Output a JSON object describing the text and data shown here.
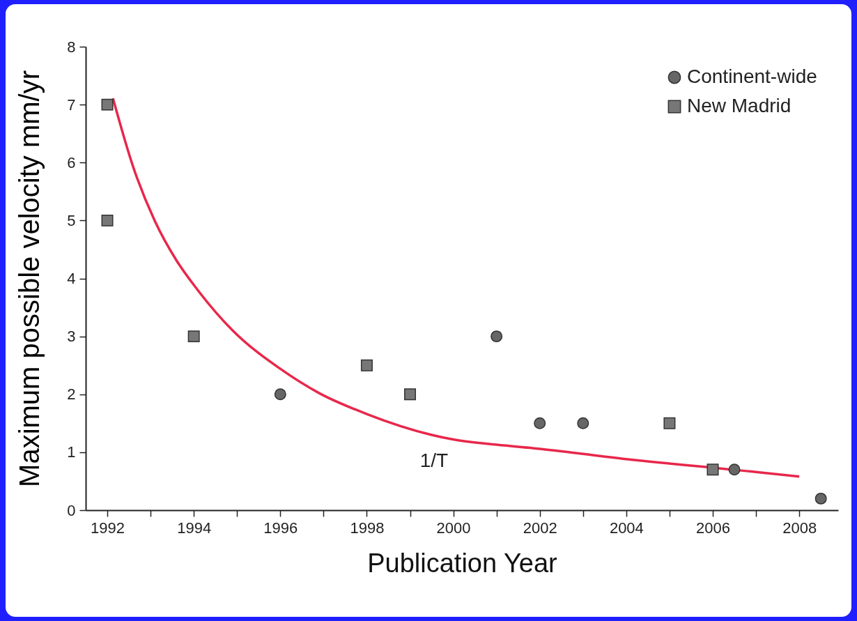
{
  "chart_data": {
    "type": "scatter",
    "xlabel": "Publication Year",
    "ylabel": "Maximum possible velocity mm/yr",
    "xlim": [
      1991.5,
      2008.9
    ],
    "ylim": [
      0,
      8
    ],
    "xticks": [
      1992,
      {
        "value": 1993,
        "label": null
      },
      1994,
      {
        "value": 1995,
        "label": null
      },
      1996,
      {
        "value": 1997,
        "label": null
      },
      1998,
      {
        "value": 1999,
        "label": null
      },
      2000,
      {
        "value": 2001,
        "label": null
      },
      2002,
      {
        "value": 2003,
        "label": null
      },
      2004,
      {
        "value": 2005,
        "label": null
      },
      2006,
      {
        "value": 2007,
        "label": null
      },
      2008
    ],
    "yticks": [
      0,
      1,
      2,
      3,
      4,
      5,
      6,
      7,
      8
    ],
    "grid": false,
    "legend": "top right",
    "annotations": [
      "1/T"
    ],
    "series": [
      {
        "name": "Continent-wide",
        "marker": "circle",
        "color": "#666666",
        "x": [
          1996,
          2001,
          2002,
          2003,
          2006.5,
          2008.5
        ],
        "values": [
          2,
          3,
          1.5,
          1.5,
          0.7,
          0.2
        ]
      },
      {
        "name": "New Madrid",
        "marker": "square",
        "color": "#777777",
        "x": [
          1992,
          1992,
          1994,
          1998,
          1999,
          2005,
          2006
        ],
        "values": [
          7,
          5,
          3,
          2.5,
          2,
          1.5,
          0.7
        ]
      },
      {
        "type": "line",
        "color": "#e8274b",
        "x": [
          1992.13,
          1992.6,
          1993.1,
          1993.6,
          1994.1,
          1994.9,
          1996,
          1996.9,
          1998,
          1999.5,
          2000,
          2001,
          2002,
          2004,
          2007,
          2008
        ],
        "values": [
          7.11,
          5.92,
          4.99,
          4.31,
          3.79,
          3.1,
          2.44,
          2.02,
          1.66,
          1.3,
          1.22,
          1.13,
          1.06,
          0.88,
          0.66,
          0.58
        ]
      }
    ]
  }
}
